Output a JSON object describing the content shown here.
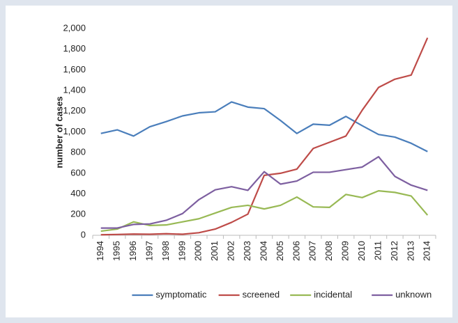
{
  "chart_data": {
    "type": "line",
    "y_label": "number of cases",
    "categories": [
      "1994",
      "1995",
      "1996",
      "1997",
      "1998",
      "1999",
      "2000",
      "2001",
      "2002",
      "2003",
      "2004",
      "2005",
      "2006",
      "2007",
      "2008",
      "2009",
      "2010",
      "2011",
      "2012",
      "2013",
      "2014"
    ],
    "series": [
      {
        "name": "symptomatic",
        "color": "#4a7ebb",
        "values": [
          985,
          1020,
          960,
          1050,
          1100,
          1155,
          1185,
          1195,
          1290,
          1240,
          1225,
          1110,
          985,
          1075,
          1065,
          1150,
          1060,
          975,
          950,
          890,
          810
        ]
      },
      {
        "name": "screened",
        "color": "#be4b48",
        "values": [
          5,
          8,
          12,
          10,
          15,
          10,
          25,
          60,
          125,
          205,
          580,
          600,
          640,
          840,
          900,
          960,
          1210,
          1430,
          1510,
          1550,
          1910
        ]
      },
      {
        "name": "incidental",
        "color": "#98b954",
        "values": [
          40,
          60,
          130,
          95,
          100,
          130,
          160,
          215,
          270,
          290,
          255,
          290,
          370,
          275,
          270,
          395,
          365,
          430,
          415,
          380,
          195
        ]
      },
      {
        "name": "unknown",
        "color": "#7d5fa0",
        "values": [
          70,
          70,
          105,
          110,
          145,
          210,
          345,
          440,
          470,
          435,
          615,
          495,
          525,
          610,
          610,
          635,
          660,
          760,
          570,
          485,
          435
        ]
      }
    ],
    "ylim": [
      0,
      2000
    ],
    "yticks": [
      0,
      200,
      400,
      600,
      800,
      {
        "value": 1000,
        "label": "1,000"
      },
      {
        "value": 1200,
        "label": "1,200"
      },
      {
        "value": 1400,
        "label": "1,400"
      },
      {
        "value": 1600,
        "label": "1,600"
      },
      {
        "value": 1800,
        "label": "1,800"
      },
      {
        "value": 2000,
        "label": "2,000"
      }
    ],
    "grid": false,
    "legend": "bottom"
  }
}
